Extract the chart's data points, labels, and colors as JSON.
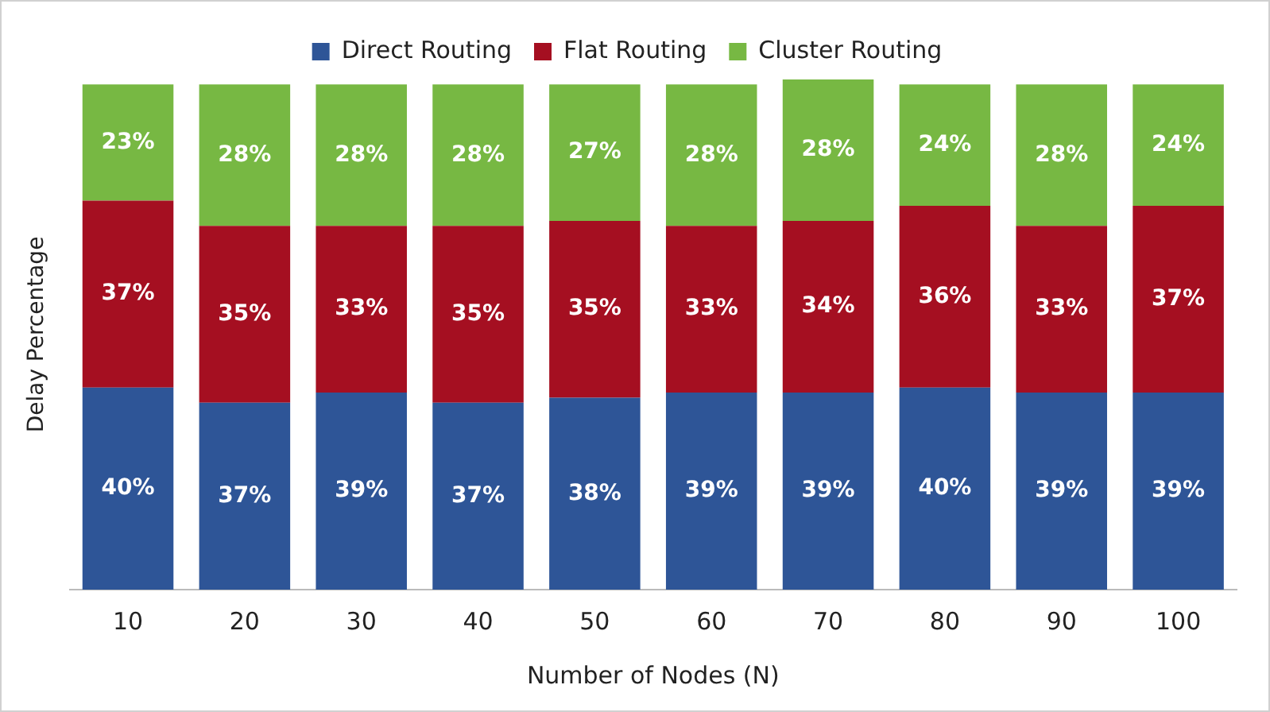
{
  "chart_data": {
    "type": "bar",
    "stacked": true,
    "xlabel": "Number of Nodes (N)",
    "ylabel": "Delay Percentage",
    "categories": [
      "10",
      "20",
      "30",
      "40",
      "50",
      "60",
      "70",
      "80",
      "90",
      "100"
    ],
    "series": [
      {
        "name": "Direct Routing",
        "color": "#2e5597",
        "values": [
          40,
          37,
          39,
          37,
          38,
          39,
          39,
          40,
          39,
          39
        ],
        "value_labels": [
          "40%",
          "37%",
          "39%",
          "37%",
          "38%",
          "39%",
          "39%",
          "40%",
          "39%",
          "39%"
        ]
      },
      {
        "name": "Flat Routing",
        "color": "#a50f21",
        "values": [
          37,
          35,
          33,
          35,
          35,
          33,
          34,
          36,
          33,
          37
        ],
        "value_labels": [
          "37%",
          "35%",
          "33%",
          "35%",
          "35%",
          "33%",
          "34%",
          "36%",
          "33%",
          "37%"
        ]
      },
      {
        "name": "Cluster Routing",
        "color": "#77b843",
        "values": [
          23,
          28,
          28,
          28,
          27,
          28,
          28,
          24,
          28,
          24
        ],
        "value_labels": [
          "23%",
          "28%",
          "28%",
          "28%",
          "27%",
          "28%",
          "28%",
          "24%",
          "28%",
          "24%"
        ]
      }
    ],
    "legend": "top",
    "tick_labels": "x"
  }
}
